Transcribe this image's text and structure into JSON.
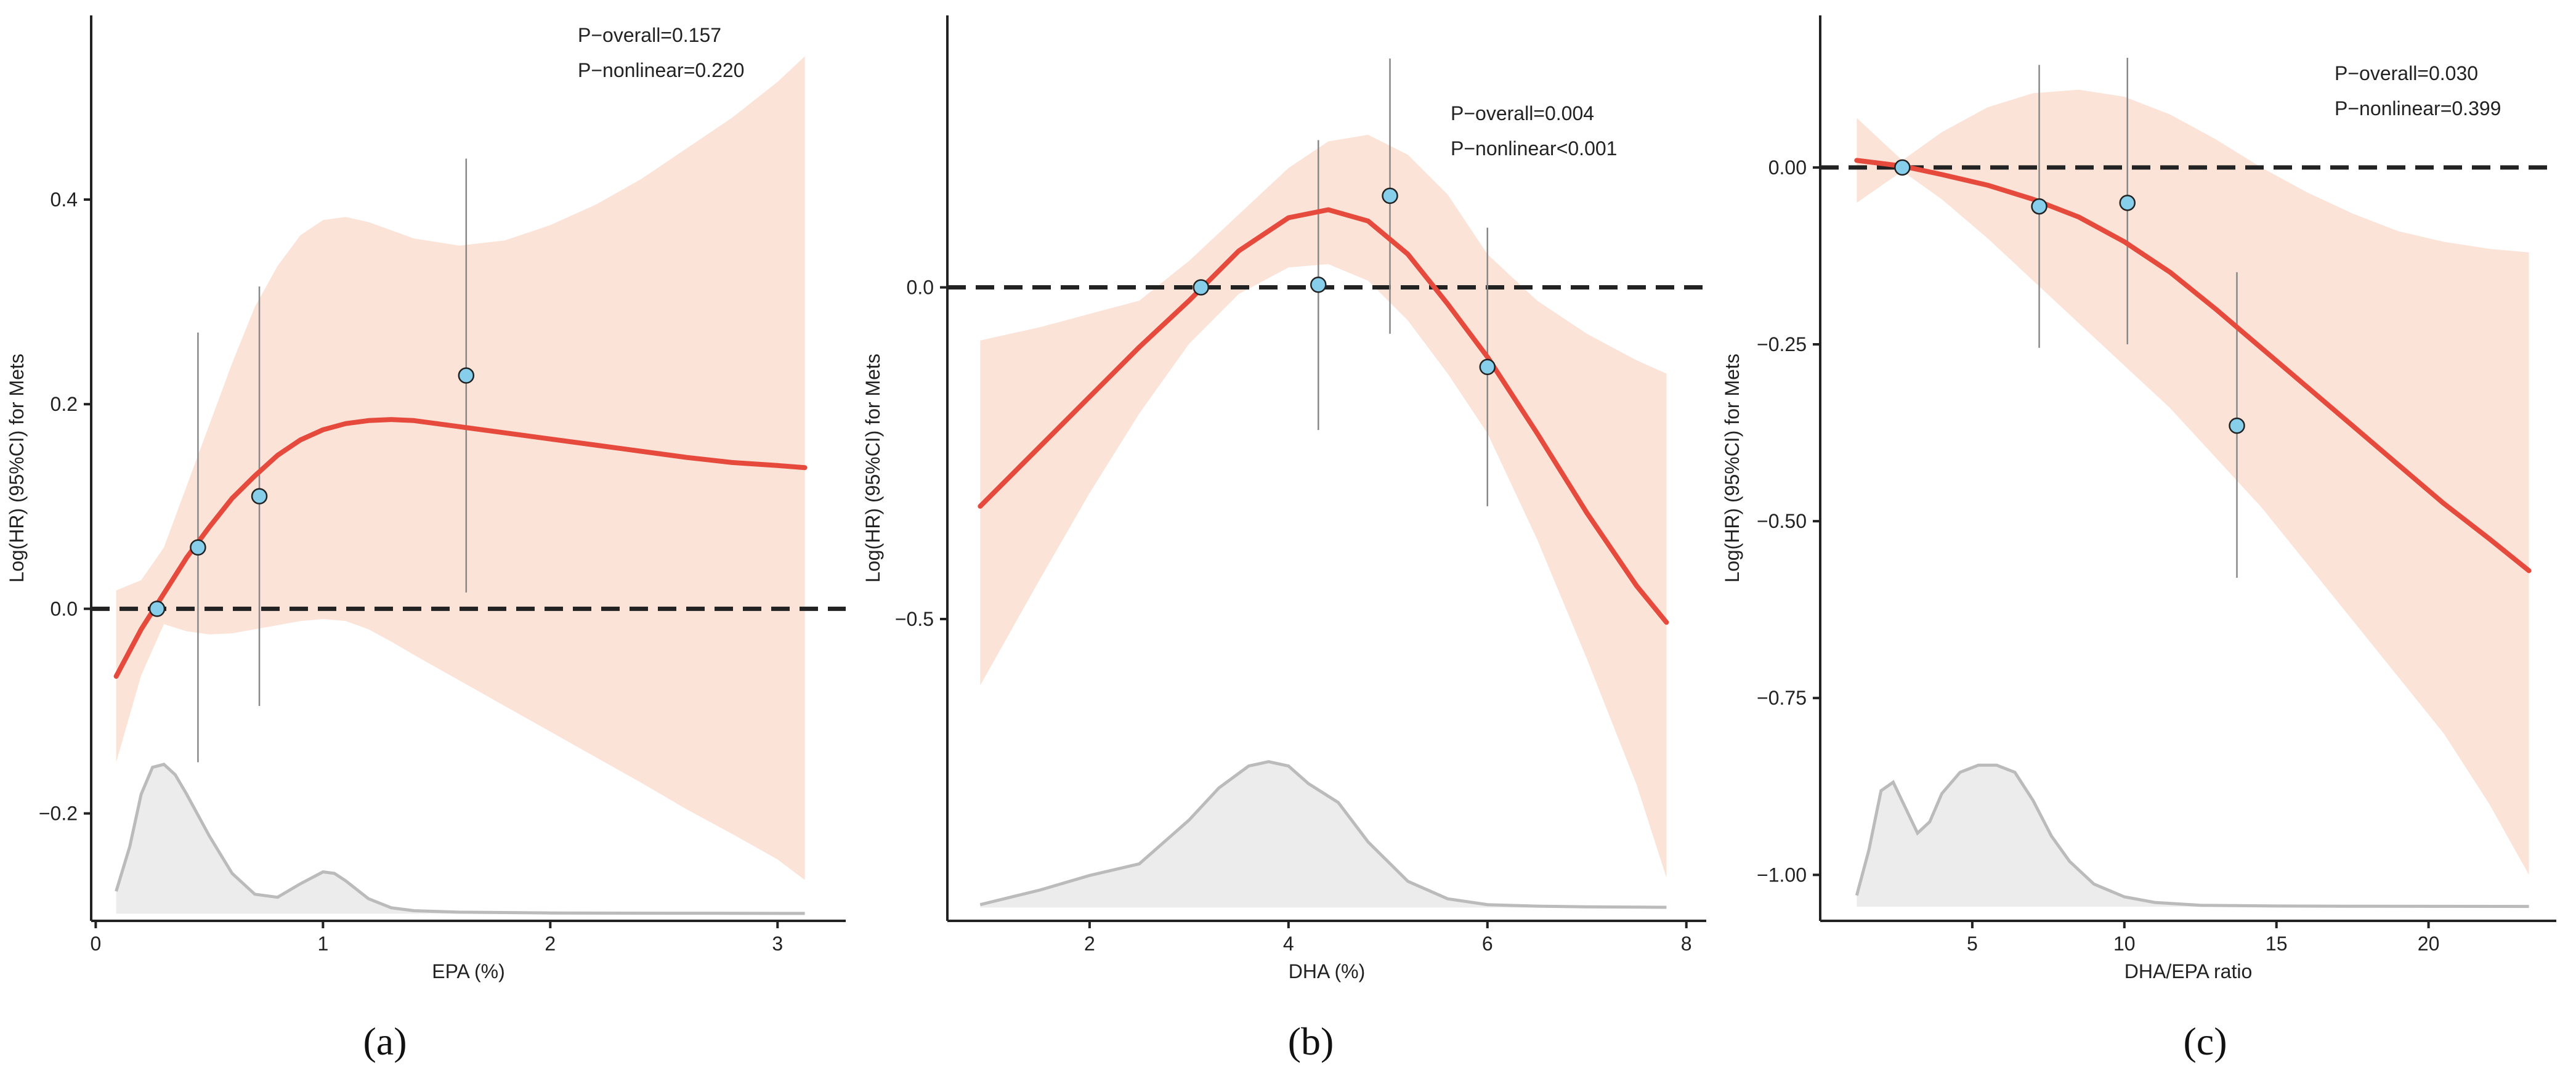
{
  "chart_data": [
    {
      "panel_label": "(a)",
      "type": "line",
      "xlabel": "EPA (%)",
      "ylabel": "Log(HR) (95%CI) for Mets",
      "xlim": [
        -0.02,
        3.3
      ],
      "ylim": [
        -0.305,
        0.58
      ],
      "xticks": [
        {
          "value": 0,
          "label": "0"
        },
        {
          "value": 1,
          "label": "1"
        },
        {
          "value": 2,
          "label": "2"
        },
        {
          "value": 3,
          "label": "3"
        }
      ],
      "yticks": [
        {
          "value": -0.2,
          "label": "−0.2"
        },
        {
          "value": 0.0,
          "label": "0.0"
        },
        {
          "value": 0.2,
          "label": "0.2"
        },
        {
          "value": 0.4,
          "label": "0.4"
        }
      ],
      "reference_y": 0,
      "annotations": [
        "P−overall=0.157",
        "P−nonlinear=0.220"
      ],
      "spline": {
        "x": [
          0.09,
          0.2,
          0.3,
          0.4,
          0.5,
          0.6,
          0.7,
          0.8,
          0.9,
          1.0,
          1.1,
          1.2,
          1.3,
          1.4,
          1.6,
          1.8,
          2.0,
          2.2,
          2.4,
          2.6,
          2.8,
          3.0,
          3.12
        ],
        "y": [
          -0.066,
          -0.02,
          0.015,
          0.05,
          0.08,
          0.108,
          0.13,
          0.15,
          0.165,
          0.175,
          0.181,
          0.184,
          0.185,
          0.184,
          0.178,
          0.172,
          0.166,
          0.16,
          0.154,
          0.148,
          0.143,
          0.14,
          0.138
        ],
        "lower": [
          -0.15,
          -0.065,
          -0.015,
          -0.022,
          -0.025,
          -0.024,
          -0.02,
          -0.016,
          -0.012,
          -0.01,
          -0.012,
          -0.02,
          -0.032,
          -0.045,
          -0.07,
          -0.095,
          -0.12,
          -0.145,
          -0.17,
          -0.196,
          -0.22,
          -0.245,
          -0.265
        ],
        "upper": [
          0.018,
          0.028,
          0.06,
          0.12,
          0.18,
          0.24,
          0.295,
          0.335,
          0.365,
          0.38,
          0.383,
          0.378,
          0.37,
          0.362,
          0.355,
          0.36,
          0.375,
          0.395,
          0.42,
          0.45,
          0.48,
          0.515,
          0.54
        ]
      },
      "points": [
        {
          "x": 0.27,
          "y": 0.0,
          "lower": 0.0,
          "upper": 0.0
        },
        {
          "x": 0.45,
          "y": 0.06,
          "lower": -0.15,
          "upper": 0.27
        },
        {
          "x": 0.72,
          "y": 0.11,
          "lower": -0.095,
          "upper": 0.315
        },
        {
          "x": 1.63,
          "y": 0.228,
          "lower": 0.016,
          "upper": 0.44
        }
      ],
      "density": {
        "x": [
          0.09,
          0.15,
          0.2,
          0.25,
          0.3,
          0.35,
          0.4,
          0.5,
          0.6,
          0.7,
          0.8,
          0.9,
          1.0,
          1.05,
          1.1,
          1.2,
          1.3,
          1.4,
          1.6,
          2.0,
          2.5,
          3.12
        ],
        "h": [
          0.15,
          0.45,
          0.8,
          0.98,
          1.0,
          0.93,
          0.8,
          0.52,
          0.27,
          0.13,
          0.11,
          0.2,
          0.28,
          0.27,
          0.22,
          0.1,
          0.04,
          0.02,
          0.01,
          0.005,
          0.003,
          0.002
        ]
      },
      "density_base": -0.298,
      "density_top": -0.152
    },
    {
      "panel_label": "(b)",
      "type": "line",
      "xlabel": "DHA (%)",
      "ylabel": "Log(HR) (95%CI) for Mets",
      "xlim": [
        0.57,
        8.2
      ],
      "ylim": [
        -0.955,
        0.41
      ],
      "xticks": [
        {
          "value": 2,
          "label": "2"
        },
        {
          "value": 4,
          "label": "4"
        },
        {
          "value": 6,
          "label": "6"
        },
        {
          "value": 8,
          "label": "8"
        }
      ],
      "yticks": [
        {
          "value": -0.5,
          "label": "−0.5"
        },
        {
          "value": 0.0,
          "label": "0.0"
        }
      ],
      "reference_y": 0,
      "annotations": [
        "P−overall=0.004",
        "P−nonlinear<0.001"
      ],
      "spline": {
        "x": [
          0.9,
          1.5,
          2.0,
          2.5,
          3.0,
          3.5,
          4.0,
          4.4,
          4.8,
          5.2,
          5.6,
          6.0,
          6.5,
          7.0,
          7.5,
          7.8
        ],
        "y": [
          -0.33,
          -0.24,
          -0.165,
          -0.09,
          -0.02,
          0.055,
          0.105,
          0.117,
          0.1,
          0.05,
          -0.025,
          -0.105,
          -0.22,
          -0.34,
          -0.45,
          -0.505
        ],
        "lower": [
          -0.6,
          -0.44,
          -0.31,
          -0.19,
          -0.085,
          -0.01,
          0.03,
          0.035,
          0.01,
          -0.05,
          -0.13,
          -0.22,
          -0.38,
          -0.56,
          -0.75,
          -0.89
        ],
        "upper": [
          -0.08,
          -0.06,
          -0.04,
          -0.02,
          0.04,
          0.11,
          0.18,
          0.22,
          0.23,
          0.2,
          0.14,
          0.05,
          -0.02,
          -0.07,
          -0.11,
          -0.13
        ]
      },
      "points": [
        {
          "x": 3.12,
          "y": 0.0,
          "lower": 0.0,
          "upper": 0.0
        },
        {
          "x": 4.3,
          "y": 0.004,
          "lower": -0.215,
          "upper": 0.222
        },
        {
          "x": 5.02,
          "y": 0.138,
          "lower": -0.07,
          "upper": 0.345
        },
        {
          "x": 6.0,
          "y": -0.12,
          "lower": -0.33,
          "upper": 0.09
        }
      ],
      "density": {
        "x": [
          0.9,
          1.5,
          2.0,
          2.5,
          3.0,
          3.3,
          3.6,
          3.8,
          4.0,
          4.2,
          4.5,
          4.8,
          5.2,
          5.6,
          6.0,
          6.5,
          7.0,
          7.8
        ],
        "h": [
          0.02,
          0.12,
          0.22,
          0.3,
          0.6,
          0.82,
          0.97,
          1.0,
          0.97,
          0.85,
          0.72,
          0.45,
          0.18,
          0.06,
          0.02,
          0.01,
          0.005,
          0.002
        ]
      },
      "density_base": -0.935,
      "density_top": -0.715
    },
    {
      "panel_label": "(c)",
      "type": "line",
      "xlabel": "DHA/EPA ratio",
      "ylabel": "Log(HR) (95%CI) for Mets",
      "xlim": [
        0.0,
        24.2
      ],
      "ylim": [
        -1.065,
        0.215
      ],
      "xticks": [
        {
          "value": 5,
          "label": "5"
        },
        {
          "value": 10,
          "label": "10"
        },
        {
          "value": 15,
          "label": "15"
        },
        {
          "value": 20,
          "label": "20"
        }
      ],
      "yticks": [
        {
          "value": -1.0,
          "label": "−1.00"
        },
        {
          "value": -0.75,
          "label": "−0.75"
        },
        {
          "value": -0.5,
          "label": "−0.50"
        },
        {
          "value": -0.25,
          "label": "−0.25"
        },
        {
          "value": 0.0,
          "label": "0.00"
        }
      ],
      "reference_y": 0,
      "annotations": [
        "P−overall=0.030",
        "P−nonlinear=0.399"
      ],
      "spline": {
        "x": [
          1.2,
          2.7,
          4.0,
          5.5,
          7.0,
          8.5,
          10.0,
          11.5,
          13.0,
          14.5,
          16.0,
          17.5,
          19.0,
          20.5,
          22.0,
          23.3
        ],
        "y": [
          0.01,
          0.002,
          -0.01,
          -0.025,
          -0.045,
          -0.07,
          -0.105,
          -0.148,
          -0.2,
          -0.255,
          -0.31,
          -0.365,
          -0.42,
          -0.475,
          -0.525,
          -0.57
        ],
        "lower": [
          -0.05,
          -0.005,
          -0.045,
          -0.1,
          -0.16,
          -0.22,
          -0.28,
          -0.34,
          -0.41,
          -0.48,
          -0.56,
          -0.64,
          -0.72,
          -0.8,
          -0.9,
          -1.0
        ],
        "upper": [
          0.07,
          0.01,
          0.05,
          0.085,
          0.105,
          0.11,
          0.1,
          0.075,
          0.04,
          0.0,
          -0.035,
          -0.065,
          -0.09,
          -0.105,
          -0.115,
          -0.12
        ]
      },
      "points": [
        {
          "x": 2.7,
          "y": 0.0,
          "lower": 0.0,
          "upper": 0.0
        },
        {
          "x": 7.2,
          "y": -0.055,
          "lower": -0.255,
          "upper": 0.145
        },
        {
          "x": 10.1,
          "y": -0.05,
          "lower": -0.25,
          "upper": 0.155
        },
        {
          "x": 13.7,
          "y": -0.365,
          "lower": -0.58,
          "upper": -0.148
        }
      ],
      "density": {
        "x": [
          1.2,
          1.6,
          2.0,
          2.4,
          2.8,
          3.2,
          3.6,
          4.0,
          4.6,
          5.2,
          5.8,
          6.4,
          7.0,
          7.6,
          8.2,
          9.0,
          10.0,
          11.0,
          12.5,
          15.0,
          18.0,
          23.3
        ],
        "h": [
          0.08,
          0.4,
          0.82,
          0.88,
          0.7,
          0.52,
          0.6,
          0.8,
          0.95,
          1.0,
          1.0,
          0.95,
          0.75,
          0.5,
          0.32,
          0.16,
          0.07,
          0.03,
          0.01,
          0.005,
          0.003,
          0.002
        ]
      },
      "density_base": -1.045,
      "density_top": -0.845
    }
  ],
  "colors": {
    "spline": "#e64a3c",
    "ci_band": "#fbe3d8",
    "point_fill": "#87ceeb",
    "point_stroke": "#222222",
    "error_bar": "#888888",
    "reference_line": "#222222",
    "density_fill": "#ececec",
    "density_stroke": "#bbbbbb",
    "axis": "#222222"
  }
}
